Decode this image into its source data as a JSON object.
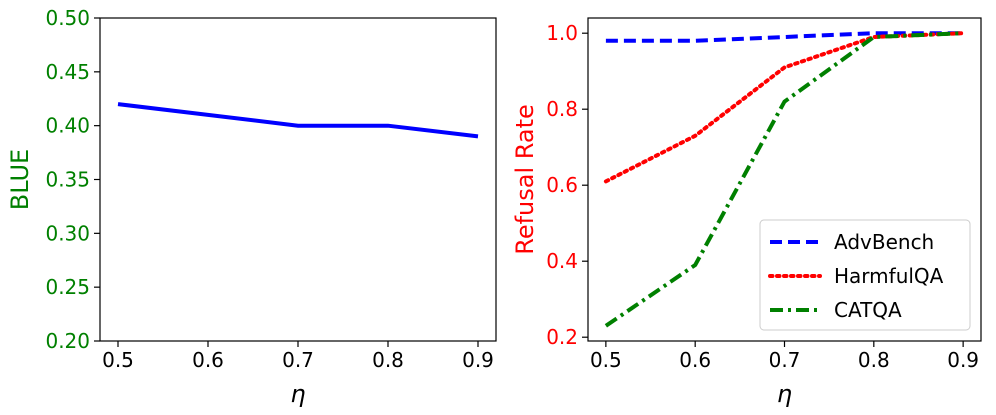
{
  "chart_data": [
    {
      "type": "line",
      "xlabel": "η",
      "ylabel": "BLUE",
      "label_color": "#008000",
      "xlim": [
        0.48,
        0.92
      ],
      "ylim": [
        0.2,
        0.5
      ],
      "xticks": [
        "0.5",
        "0.6",
        "0.7",
        "0.8",
        "0.9"
      ],
      "yticks": [
        "0.20",
        "0.25",
        "0.30",
        "0.35",
        "0.40",
        "0.45",
        "0.50"
      ],
      "x": [
        0.5,
        0.7,
        0.8,
        0.9
      ],
      "series": [
        {
          "values": [
            0.42,
            0.4,
            0.4,
            0.39
          ],
          "color": "#0000ff",
          "dash": "solid"
        }
      ]
    },
    {
      "type": "line",
      "xlabel": "η",
      "ylabel": "Refusal Rate",
      "label_color": "#ff0000",
      "xlim": [
        0.48,
        0.92
      ],
      "ylim": [
        0.19,
        1.04
      ],
      "xticks": [
        "0.5",
        "0.6",
        "0.7",
        "0.8",
        "0.9"
      ],
      "yticks": [
        "0.2",
        "0.4",
        "0.6",
        "0.8",
        "1.0"
      ],
      "x": [
        0.5,
        0.6,
        0.7,
        0.8,
        0.9
      ],
      "legend": "bottom-right",
      "series": [
        {
          "name": "AdvBench",
          "values": [
            0.98,
            0.98,
            0.99,
            1.0,
            1.0
          ],
          "color": "#0000ff",
          "dash": "dashed"
        },
        {
          "name": "HarmfulQA",
          "values": [
            0.61,
            0.73,
            0.91,
            0.99,
            1.0
          ],
          "color": "#ff0000",
          "dash": "dotted"
        },
        {
          "name": "CATQA",
          "values": [
            0.23,
            0.39,
            0.82,
            0.99,
            1.0
          ],
          "color": "#008000",
          "dash": "dashdot"
        }
      ]
    }
  ]
}
